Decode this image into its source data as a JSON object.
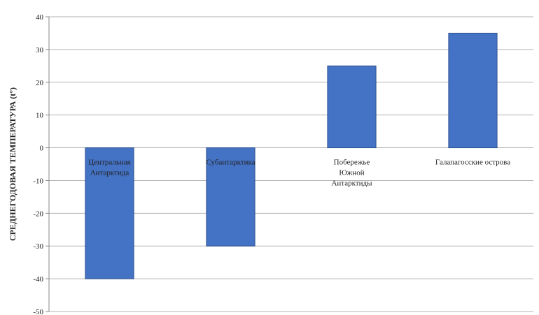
{
  "chart_data": {
    "type": "bar",
    "categories": [
      "Центральная Антарктида",
      "Субантарктика",
      "Побережье Южной Антарктиды",
      "Галапагосские острова"
    ],
    "values": [
      -40,
      -30,
      25,
      35
    ],
    "title": "",
    "xlabel": "",
    "ylabel": "СРЕДНЕГОДОВАЯ ТЕМПЕРАТУРА (t°)",
    "ylim": [
      -50,
      40
    ],
    "yticks": [
      "40",
      "30",
      "20",
      "10",
      "0",
      "-10",
      "-20",
      "-30",
      "-40",
      "-50"
    ],
    "grid": true,
    "legend": "none",
    "bar_color": "#4472C4",
    "bar_edge_color": "#2F528F",
    "grid_color": "#b3b3b3"
  }
}
